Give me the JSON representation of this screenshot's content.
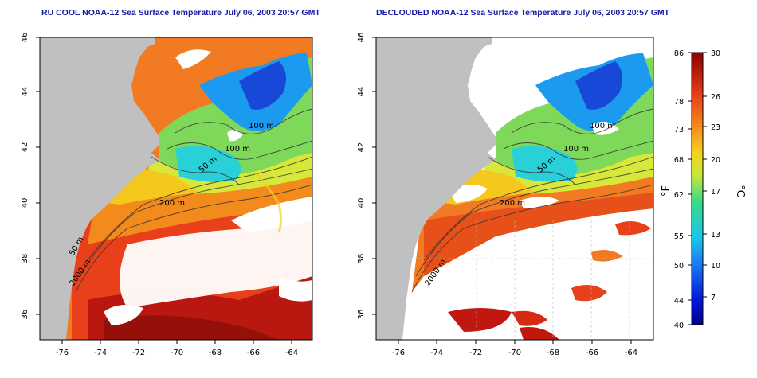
{
  "panels": [
    {
      "title": "RU COOL NOAA-12 Sea Surface Temperature July 06, 2003 20:57 GMT",
      "x_ticks": [
        "-76",
        "-74",
        "-72",
        "-70",
        "-68",
        "-66",
        "-64"
      ],
      "y_ticks": [
        "36",
        "38",
        "40",
        "42",
        "44",
        "46"
      ],
      "contour_labels": [
        "100 m",
        "100 m",
        "50 m",
        "200 m",
        "50 m",
        "2000 m"
      ]
    },
    {
      "title": "DECLOUDED NOAA-12 Sea Surface Temperature July 06, 2003 20:57 GMT",
      "x_ticks": [
        "-76",
        "-74",
        "-72",
        "-70",
        "-68",
        "-66",
        "-64"
      ],
      "y_ticks": [
        "36",
        "38",
        "40",
        "42",
        "44",
        "46"
      ],
      "contour_labels": [
        "100 m",
        "100 m",
        "50 m",
        "200 m",
        "2000 m"
      ]
    }
  ],
  "colorbar": {
    "fahrenheit_label": "°F",
    "celsius_label": "°C",
    "fahrenheit_ticks": [
      "86",
      "78",
      "73",
      "68",
      "62",
      "55",
      "50",
      "44",
      "40"
    ],
    "celsius_ticks": [
      "30",
      "26",
      "23",
      "20",
      "17",
      "13",
      "10",
      "7"
    ]
  },
  "colors": {
    "land": "#c0c0c0",
    "cloud": "#ffffff",
    "title": "#1a1aa8",
    "warm": "#cc1a0d",
    "cold": "#1a2fd6"
  }
}
